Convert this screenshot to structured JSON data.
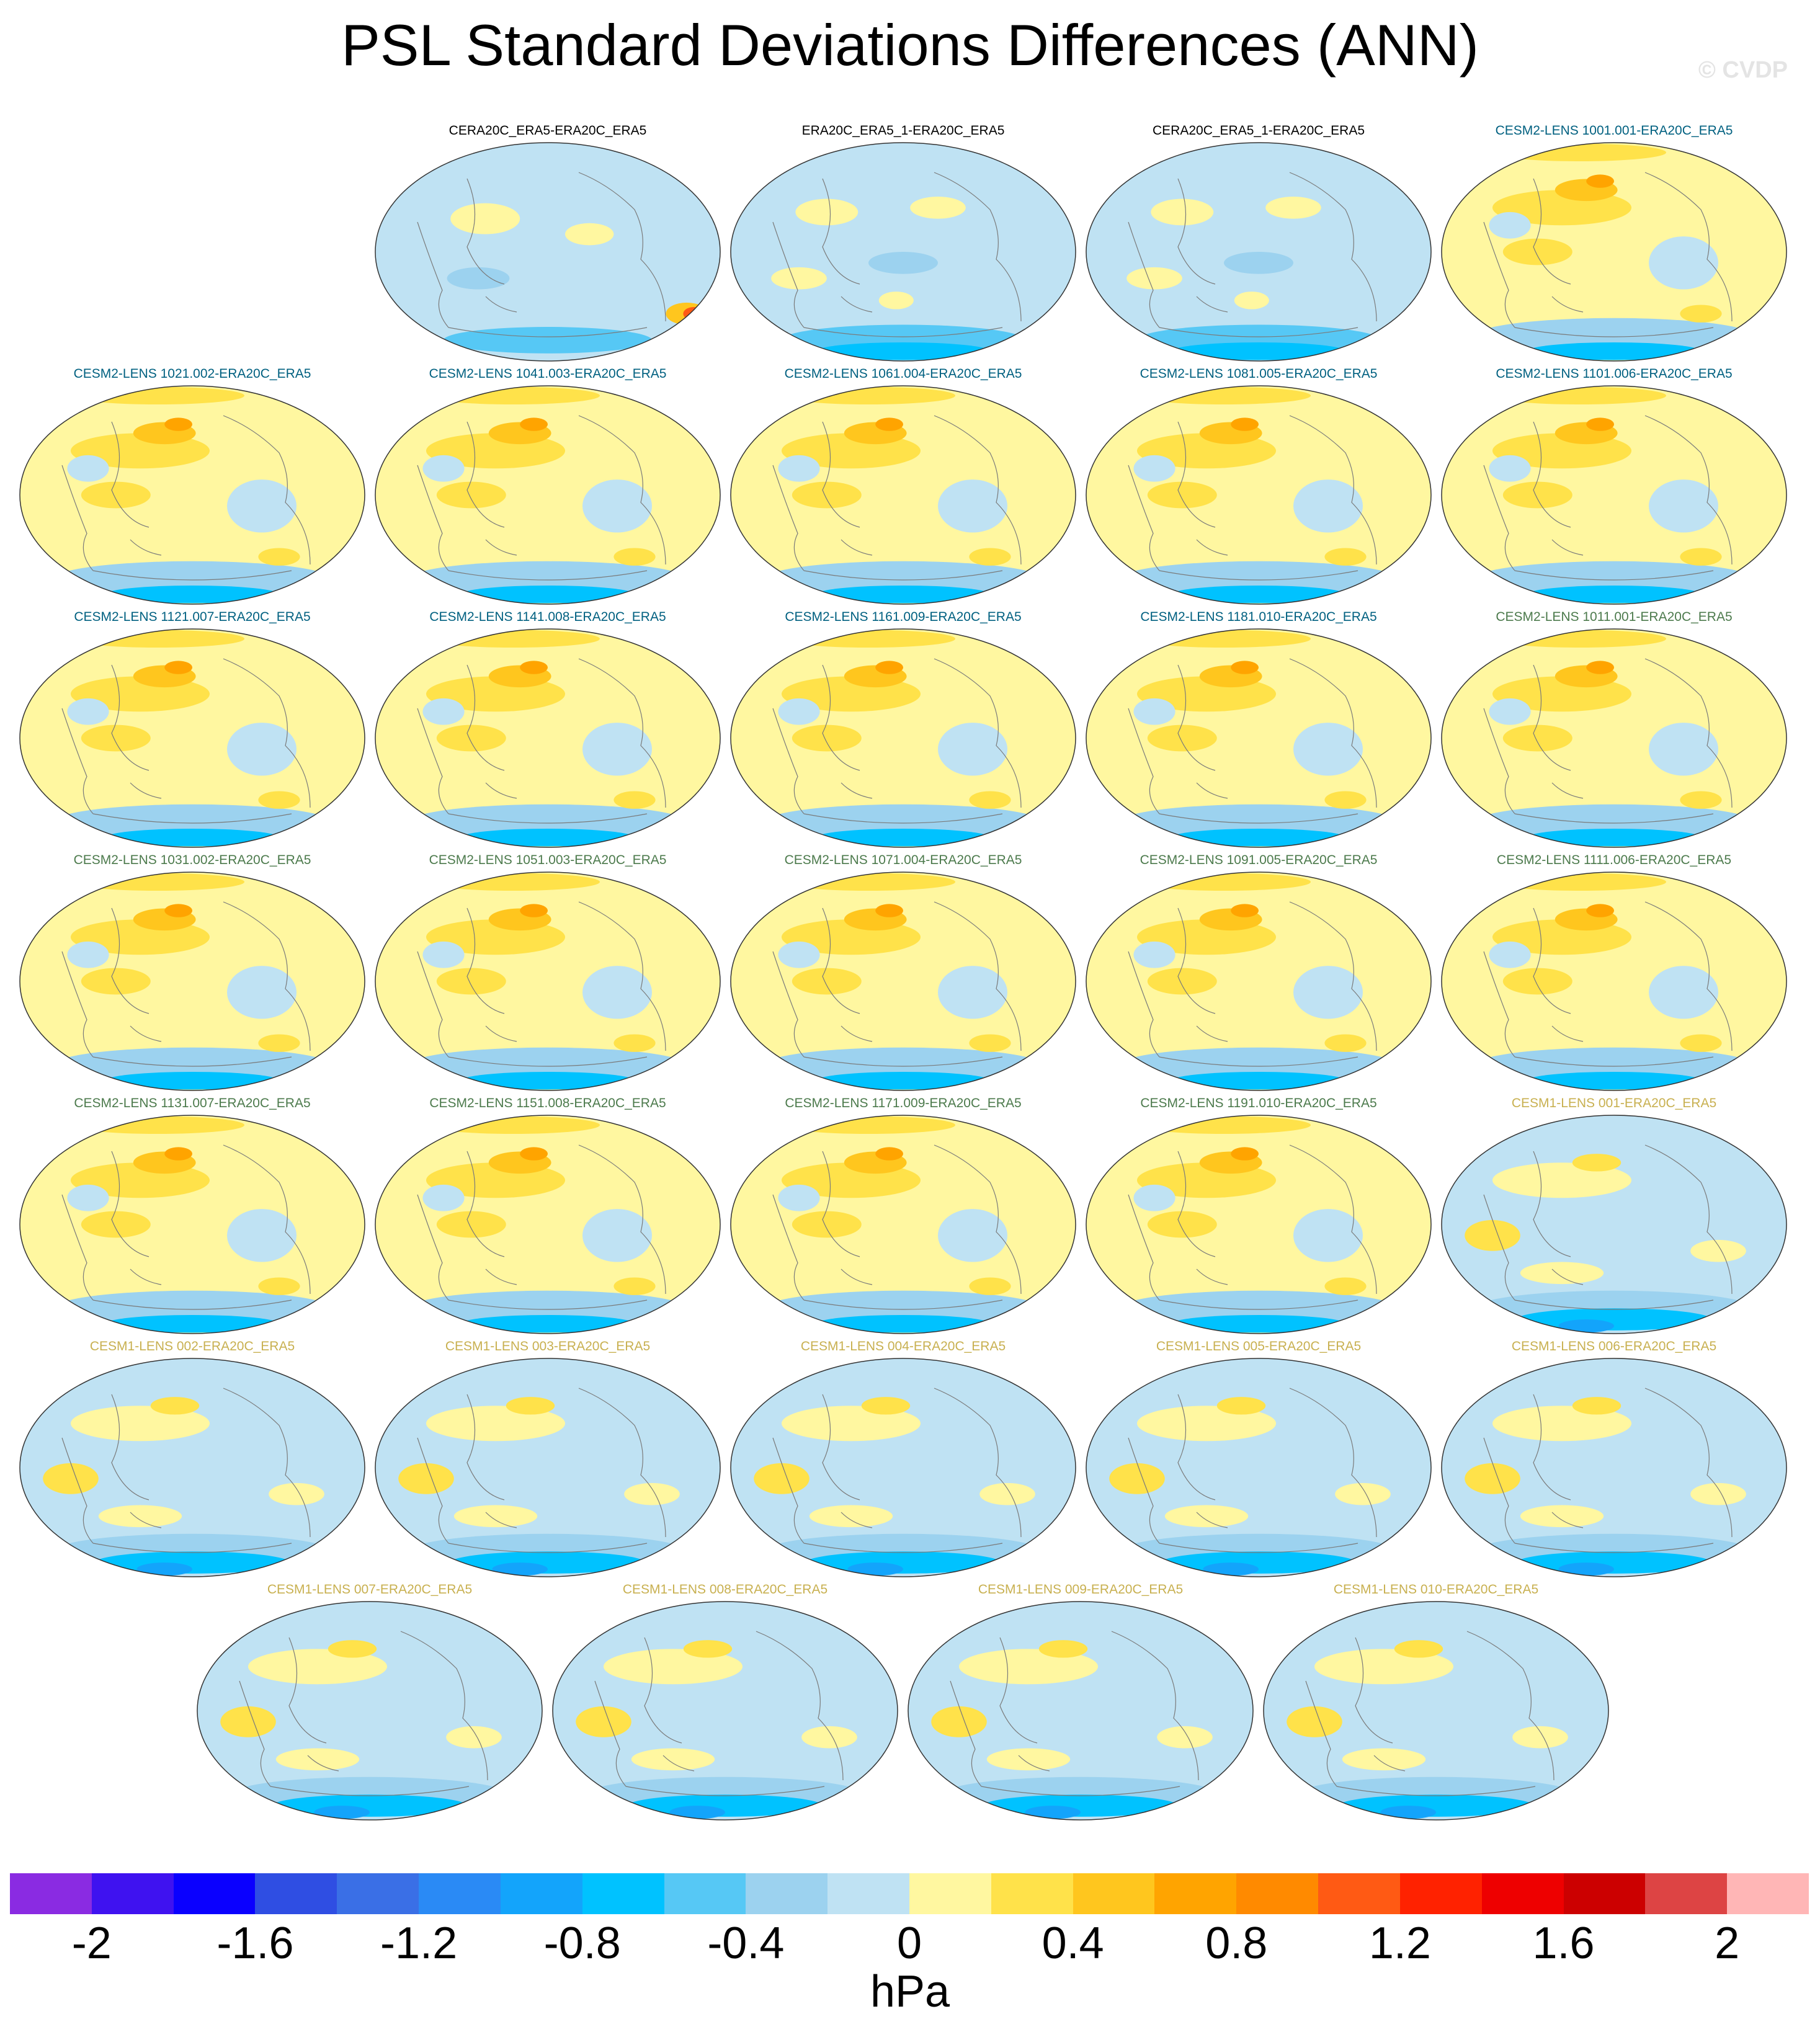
{
  "title": "PSL Standard Deviations Differences (ANN)",
  "watermark": "© CVDP",
  "units": "hPa",
  "colorbar": {
    "colors": [
      "#8a2be2",
      "#3f12f0",
      "#0a00ff",
      "#2f4ee3",
      "#3a6fe6",
      "#2a8af5",
      "#13a4fb",
      "#00c2ff",
      "#56c8f5",
      "#9cd2ef",
      "#bfe2f3",
      "#fff7a0",
      "#ffe24a",
      "#ffc61e",
      "#ffa400",
      "#ff8a00",
      "#ff5a14",
      "#ff2200",
      "#ee0000",
      "#cc0000",
      "#dd4444",
      "#ffb6b6"
    ],
    "tick_labels": [
      "-2",
      "-1.6",
      "-1.2",
      "-0.8",
      "-0.4",
      "0",
      "0.4",
      "0.8",
      "1.2",
      "1.6",
      "2"
    ]
  },
  "title_colors": {
    "obs": "#000000",
    "cesm2_a": "#006080",
    "cesm2_b": "#4c7a4c",
    "cesm1": "#c8b050"
  },
  "panels": [
    {
      "title": "CERA20C_ERA5-ERA20C_ERA5",
      "group": "obs",
      "tone": "obs1"
    },
    {
      "title": "ERA20C_ERA5_1-ERA20C_ERA5",
      "group": "obs",
      "tone": "obs2"
    },
    {
      "title": "CERA20C_ERA5_1-ERA20C_ERA5",
      "group": "obs",
      "tone": "obs2"
    },
    {
      "title": "CESM2-LENS 1001.001-ERA20C_ERA5",
      "group": "cesm2_a",
      "tone": "warm"
    },
    {
      "title": "CESM2-LENS 1021.002-ERA20C_ERA5",
      "group": "cesm2_a",
      "tone": "warm"
    },
    {
      "title": "CESM2-LENS 1041.003-ERA20C_ERA5",
      "group": "cesm2_a",
      "tone": "warm"
    },
    {
      "title": "CESM2-LENS 1061.004-ERA20C_ERA5",
      "group": "cesm2_a",
      "tone": "warm"
    },
    {
      "title": "CESM2-LENS 1081.005-ERA20C_ERA5",
      "group": "cesm2_a",
      "tone": "warm"
    },
    {
      "title": "CESM2-LENS 1101.006-ERA20C_ERA5",
      "group": "cesm2_a",
      "tone": "warm"
    },
    {
      "title": "CESM2-LENS 1121.007-ERA20C_ERA5",
      "group": "cesm2_a",
      "tone": "warm"
    },
    {
      "title": "CESM2-LENS 1141.008-ERA20C_ERA5",
      "group": "cesm2_a",
      "tone": "warm"
    },
    {
      "title": "CESM2-LENS 1161.009-ERA20C_ERA5",
      "group": "cesm2_a",
      "tone": "warm"
    },
    {
      "title": "CESM2-LENS 1181.010-ERA20C_ERA5",
      "group": "cesm2_a",
      "tone": "warm"
    },
    {
      "title": "CESM2-LENS 1011.001-ERA20C_ERA5",
      "group": "cesm2_b",
      "tone": "warm"
    },
    {
      "title": "CESM2-LENS 1031.002-ERA20C_ERA5",
      "group": "cesm2_b",
      "tone": "warm"
    },
    {
      "title": "CESM2-LENS 1051.003-ERA20C_ERA5",
      "group": "cesm2_b",
      "tone": "warm"
    },
    {
      "title": "CESM2-LENS 1071.004-ERA20C_ERA5",
      "group": "cesm2_b",
      "tone": "warm"
    },
    {
      "title": "CESM2-LENS 1091.005-ERA20C_ERA5",
      "group": "cesm2_b",
      "tone": "warm"
    },
    {
      "title": "CESM2-LENS 1111.006-ERA20C_ERA5",
      "group": "cesm2_b",
      "tone": "warm"
    },
    {
      "title": "CESM2-LENS 1131.007-ERA20C_ERA5",
      "group": "cesm2_b",
      "tone": "warm"
    },
    {
      "title": "CESM2-LENS 1151.008-ERA20C_ERA5",
      "group": "cesm2_b",
      "tone": "warm"
    },
    {
      "title": "CESM2-LENS 1171.009-ERA20C_ERA5",
      "group": "cesm2_b",
      "tone": "warm"
    },
    {
      "title": "CESM2-LENS 1191.010-ERA20C_ERA5",
      "group": "cesm2_b",
      "tone": "warm"
    },
    {
      "title": "CESM1-LENS 001-ERA20C_ERA5",
      "group": "cesm1",
      "tone": "cool"
    },
    {
      "title": "CESM1-LENS 002-ERA20C_ERA5",
      "group": "cesm1",
      "tone": "cool"
    },
    {
      "title": "CESM1-LENS 003-ERA20C_ERA5",
      "group": "cesm1",
      "tone": "cool"
    },
    {
      "title": "CESM1-LENS 004-ERA20C_ERA5",
      "group": "cesm1",
      "tone": "cool"
    },
    {
      "title": "CESM1-LENS 005-ERA20C_ERA5",
      "group": "cesm1",
      "tone": "cool"
    },
    {
      "title": "CESM1-LENS 006-ERA20C_ERA5",
      "group": "cesm1",
      "tone": "cool"
    },
    {
      "title": "CESM1-LENS 007-ERA20C_ERA5",
      "group": "cesm1",
      "tone": "cool"
    },
    {
      "title": "CESM1-LENS 008-ERA20C_ERA5",
      "group": "cesm1",
      "tone": "cool"
    },
    {
      "title": "CESM1-LENS 009-ERA20C_ERA5",
      "group": "cesm1",
      "tone": "cool"
    },
    {
      "title": "CESM1-LENS 010-ERA20C_ERA5",
      "group": "cesm1",
      "tone": "cool"
    }
  ]
}
